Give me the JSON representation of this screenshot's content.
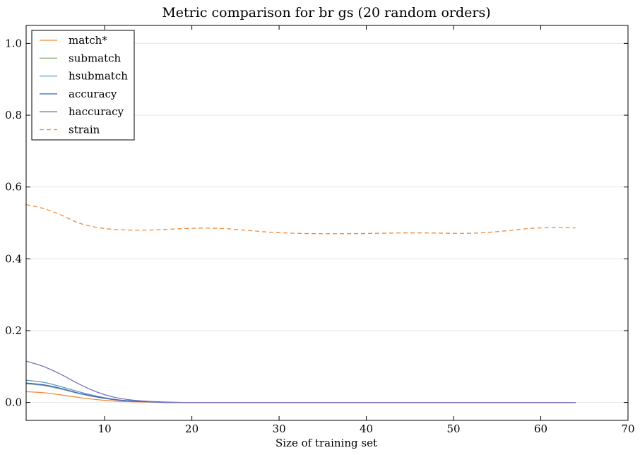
{
  "chart_data": {
    "type": "line",
    "title": "Metric comparison for br gs (20 random orders)",
    "xlabel": "Size of training set",
    "ylabel": "",
    "xlim": [
      1,
      70
    ],
    "ylim": [
      -0.05,
      1.05
    ],
    "xticks": [
      10,
      20,
      30,
      40,
      50,
      60,
      70
    ],
    "yticks": [
      0.0,
      0.2,
      0.4,
      0.6,
      0.8,
      1.0
    ],
    "xtick_labels": [
      "10",
      "20",
      "30",
      "40",
      "50",
      "60",
      "70"
    ],
    "ytick_labels": [
      "0.0",
      "0.2",
      "0.4",
      "0.6",
      "0.8",
      "1.0"
    ],
    "grid": "horizontal",
    "legend_position": "top-left",
    "series": [
      {
        "name": "match*",
        "color": "#f08a3a",
        "dash": "solid",
        "x": [
          1,
          3,
          5,
          7,
          9,
          11,
          13,
          15,
          17,
          19,
          21,
          64
        ],
        "y": [
          0.03,
          0.027,
          0.021,
          0.014,
          0.008,
          0.004,
          0.002,
          0.001,
          0.0,
          0.0,
          0.0,
          0.0
        ]
      },
      {
        "name": "submatch",
        "color": "#8fb47c",
        "dash": "solid",
        "x": [
          1,
          3,
          5,
          7,
          9,
          11,
          13,
          15,
          17,
          19,
          21,
          64
        ],
        "y": [
          0.052,
          0.047,
          0.037,
          0.025,
          0.015,
          0.008,
          0.004,
          0.002,
          0.0,
          0.0,
          0.0,
          0.0
        ]
      },
      {
        "name": "hsubmatch",
        "color": "#5b9ac4",
        "dash": "solid",
        "x": [
          1,
          3,
          5,
          7,
          9,
          11,
          13,
          15,
          17,
          19,
          21,
          64
        ],
        "y": [
          0.062,
          0.056,
          0.044,
          0.03,
          0.018,
          0.009,
          0.004,
          0.002,
          0.0,
          0.0,
          0.0,
          0.0
        ]
      },
      {
        "name": "accuracy",
        "color": "#3a60c8",
        "dash": "solid",
        "x": [
          1,
          3,
          5,
          7,
          9,
          11,
          13,
          15,
          17,
          19,
          21,
          64
        ],
        "y": [
          0.054,
          0.049,
          0.039,
          0.026,
          0.016,
          0.008,
          0.004,
          0.002,
          0.0,
          0.0,
          0.0,
          0.0
        ]
      },
      {
        "name": "haccuracy",
        "color": "#7b72b4",
        "dash": "solid",
        "x": [
          1,
          3,
          5,
          7,
          9,
          11,
          13,
          15,
          17,
          19,
          21,
          64
        ],
        "y": [
          0.115,
          0.1,
          0.078,
          0.052,
          0.03,
          0.015,
          0.007,
          0.003,
          0.001,
          0.0,
          0.0,
          0.0
        ]
      },
      {
        "name": "strain",
        "color": "#f08a3a",
        "dash": "dashed",
        "x": [
          1,
          3,
          5,
          7,
          9,
          11,
          13,
          15,
          17,
          20,
          23,
          26,
          29,
          32,
          35,
          38,
          41,
          44,
          47,
          50,
          53,
          56,
          59,
          62,
          64
        ],
        "y": [
          0.551,
          0.54,
          0.522,
          0.5,
          0.488,
          0.482,
          0.48,
          0.48,
          0.482,
          0.485,
          0.485,
          0.48,
          0.474,
          0.471,
          0.47,
          0.47,
          0.471,
          0.472,
          0.472,
          0.471,
          0.472,
          0.478,
          0.485,
          0.487,
          0.486
        ]
      }
    ]
  }
}
